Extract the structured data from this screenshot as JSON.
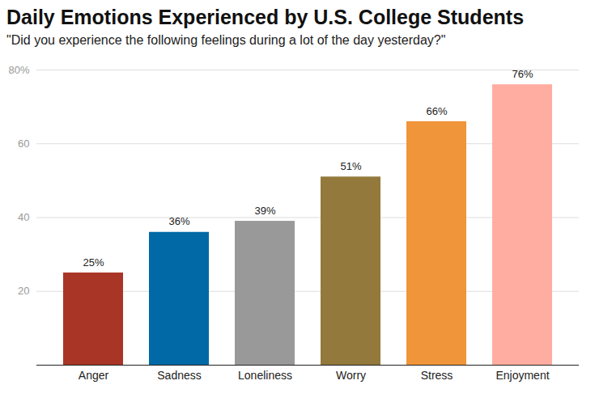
{
  "chart_data": {
    "type": "bar",
    "title": "Daily Emotions Experienced by U.S. College Students",
    "subtitle": "\"Did you experience the following feelings during a lot of the day yesterday?\"",
    "categories": [
      "Anger",
      "Sadness",
      "Loneliness",
      "Worry",
      "Stress",
      "Enjoyment"
    ],
    "values": [
      25,
      36,
      39,
      51,
      66,
      76
    ],
    "value_labels": [
      "25%",
      "36%",
      "39%",
      "51%",
      "66%",
      "76%"
    ],
    "colors": [
      "#a93526",
      "#0069a6",
      "#999999",
      "#93793b",
      "#f0953a",
      "#ffada0"
    ],
    "ylim": [
      0,
      80
    ],
    "yticks": [
      20,
      40,
      60,
      {
        "value": 80,
        "label": "80%"
      }
    ],
    "grid": true,
    "data_labels": true
  }
}
